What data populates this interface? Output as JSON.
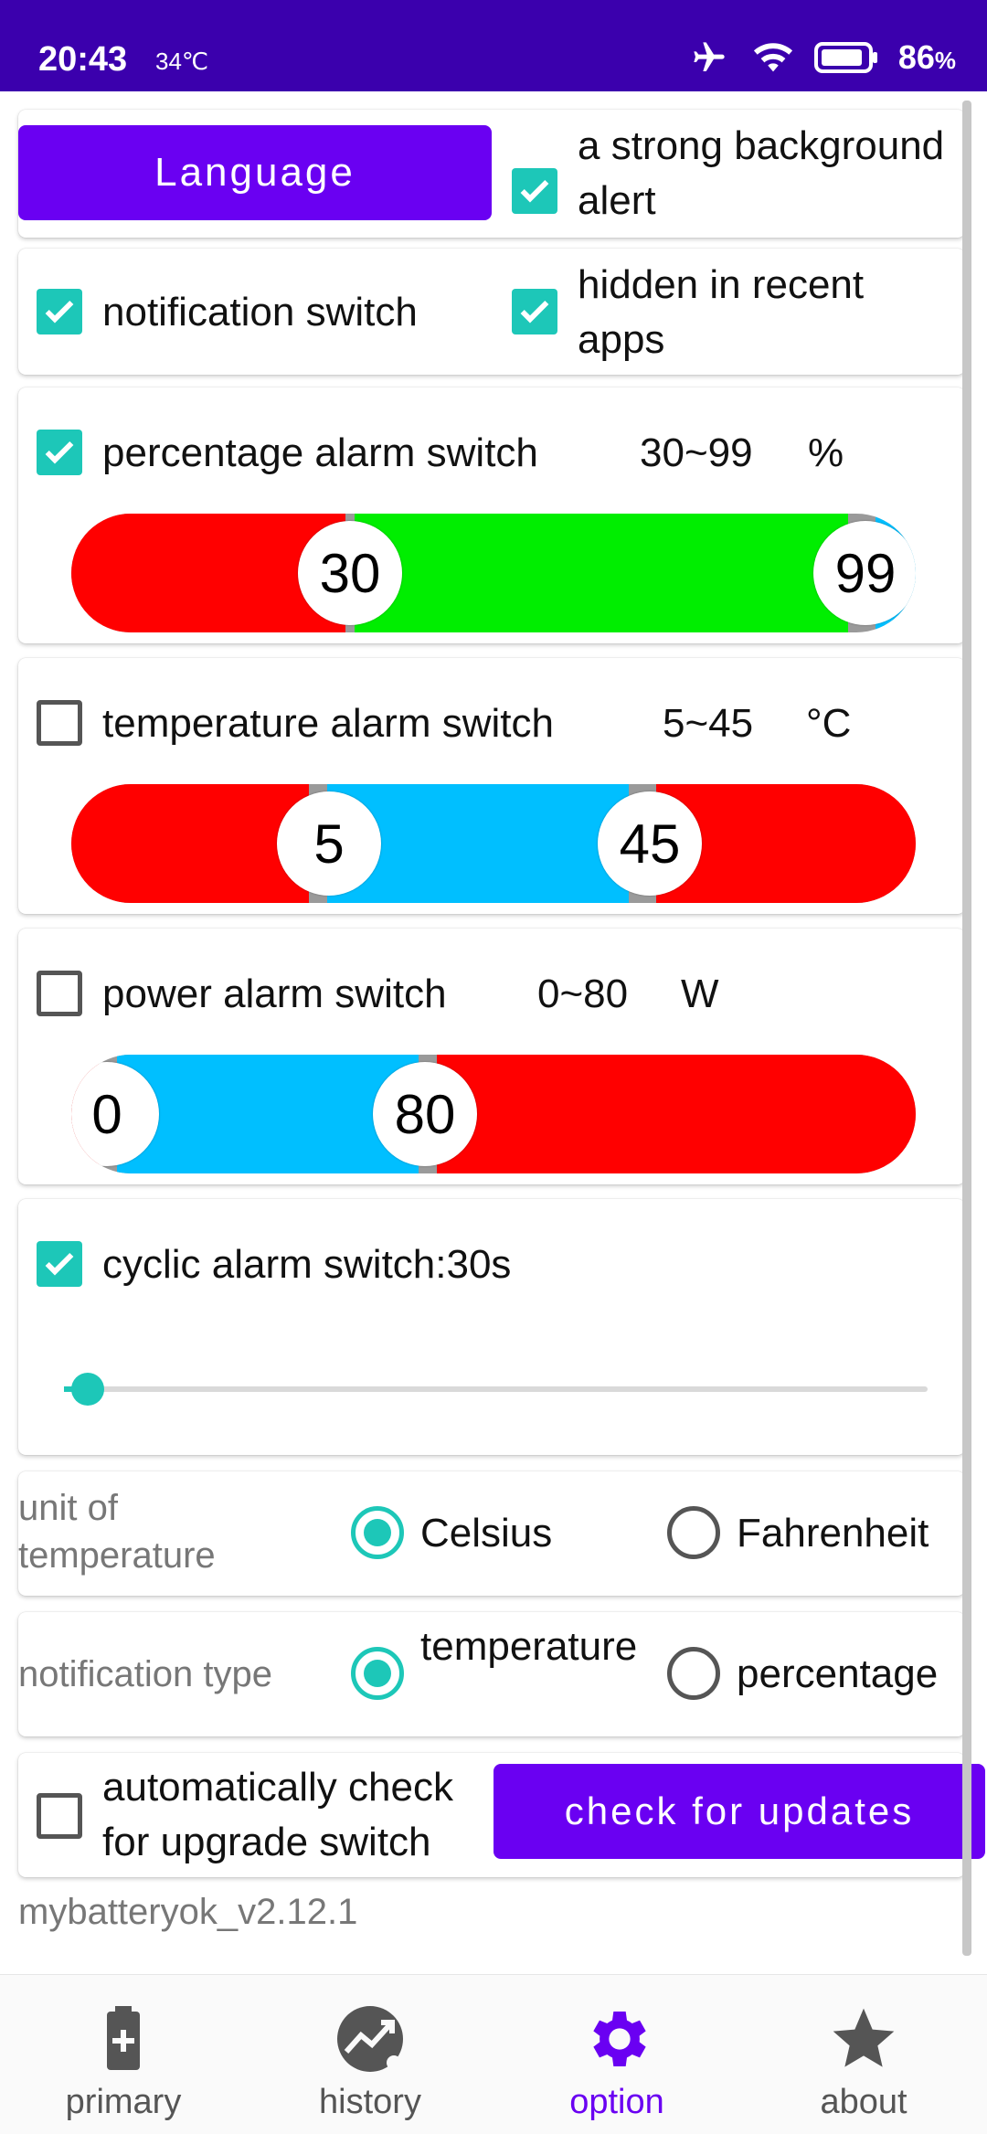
{
  "status_bar": {
    "time": "20:43",
    "temperature": "34℃",
    "battery_percent": "86",
    "battery_unit": "%"
  },
  "top": {
    "language_button": "Language",
    "strong_alert_label": "a strong background alert",
    "strong_alert_checked": true
  },
  "switches": {
    "notification_label": "notification switch",
    "notification_checked": true,
    "hidden_recent_label": "hidden in recent apps",
    "hidden_recent_checked": true
  },
  "percentage_alarm": {
    "label": "percentage alarm switch",
    "range": "30~99",
    "unit": "%",
    "checked": true,
    "low": "30",
    "high": "99",
    "colors": {
      "low": "#ff0000",
      "mid": "#00ee00",
      "high": "#00bfff"
    }
  },
  "temperature_alarm": {
    "label": "temperature alarm switch",
    "range": "5~45",
    "unit": "°C",
    "checked": false,
    "low": "5",
    "high": "45",
    "colors": {
      "low": "#ff0000",
      "mid": "#00bfff",
      "high": "#ff0000"
    }
  },
  "power_alarm": {
    "label": "power alarm switch",
    "range": "0~80",
    "unit": "W",
    "checked": false,
    "low": "0",
    "high": "80",
    "colors": {
      "low": "#ff0000",
      "mid": "#00bfff",
      "high": "#ff0000"
    }
  },
  "cyclic_alarm": {
    "label": "cyclic alarm switch:30s",
    "checked": true,
    "slider_fraction": 0.03
  },
  "temperature_unit": {
    "label": "unit of temperature",
    "options": [
      "Celsius",
      "Fahrenheit"
    ],
    "selected": "Celsius"
  },
  "notification_type": {
    "label": "notification type",
    "options": [
      "temperature",
      "percentage"
    ],
    "selected": "temperature"
  },
  "upgrade": {
    "auto_check_label": "automatically check for upgrade switch",
    "auto_check_checked": false,
    "check_button": "check for updates"
  },
  "version": "mybatteryok_v2.12.1",
  "bottom_nav": [
    {
      "label": "primary",
      "icon": "battery-plus-icon"
    },
    {
      "label": "history",
      "icon": "trend-chart-icon"
    },
    {
      "label": "option",
      "icon": "gear-icon",
      "active": true
    },
    {
      "label": "about",
      "icon": "star-icon"
    }
  ],
  "accent_color": "#6a00f2",
  "check_color": "#1dc7b8"
}
